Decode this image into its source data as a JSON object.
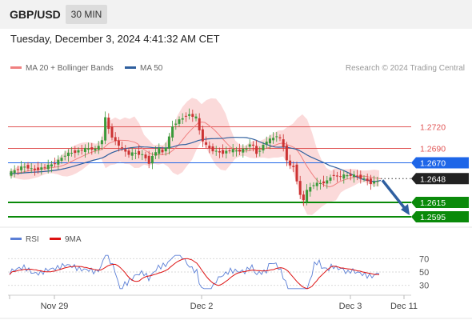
{
  "header": {
    "symbol": "GBP/USD",
    "timeframe": "30 MIN"
  },
  "datetime": "Tuesday, December 3, 2024 4:41:32 AM CET",
  "legend": {
    "ma20_bb": {
      "label": "MA 20 + Bollinger Bands",
      "color": "#f08080"
    },
    "ma50": {
      "label": "MA 50",
      "color": "#2f5f9e"
    }
  },
  "credit": "Research © 2024 Trading Central",
  "chart_data": [
    {
      "type": "candlestick",
      "x_tick_labels": [
        "Nov 29",
        "Dec 2",
        "Dec 3",
        "Dec 11"
      ],
      "ylim": [
        1.2585,
        1.2785
      ],
      "current_price": {
        "value": 1.2648,
        "label": "1.2648",
        "color": "#222222"
      },
      "levels": [
        {
          "label": "1.2720",
          "value": 1.272,
          "kind": "resistance",
          "color": "#e05555"
        },
        {
          "label": "1.2690",
          "value": 1.269,
          "kind": "resistance",
          "color": "#e05555"
        },
        {
          "label": "1.2670",
          "value": 1.267,
          "kind": "pivot",
          "color": "#1e66e8"
        },
        {
          "label": "1.2615",
          "value": 1.2615,
          "kind": "support",
          "color": "#0a8a0a"
        },
        {
          "label": "1.2595",
          "value": 1.2595,
          "kind": "support",
          "color": "#0a8a0a"
        }
      ],
      "forecast_arrow": {
        "from": 1.2648,
        "to": 1.2595,
        "color": "#2f5fa0"
      },
      "bollinger_band_color": "#fbdada",
      "up_color": "#3a9a3a",
      "down_color": "#cc3333",
      "series": [
        {
          "name": "MA 20 + Bollinger Bands",
          "color": "#f08080"
        },
        {
          "name": "MA 50",
          "color": "#2f5f9e"
        }
      ]
    },
    {
      "type": "line",
      "series": [
        {
          "name": "RSI",
          "color": "#5b7fd6"
        },
        {
          "name": "9MA",
          "color": "#dd1111"
        }
      ],
      "y_tick_labels": [
        "70",
        "50",
        "30"
      ],
      "ylim": [
        20,
        80
      ]
    }
  ]
}
